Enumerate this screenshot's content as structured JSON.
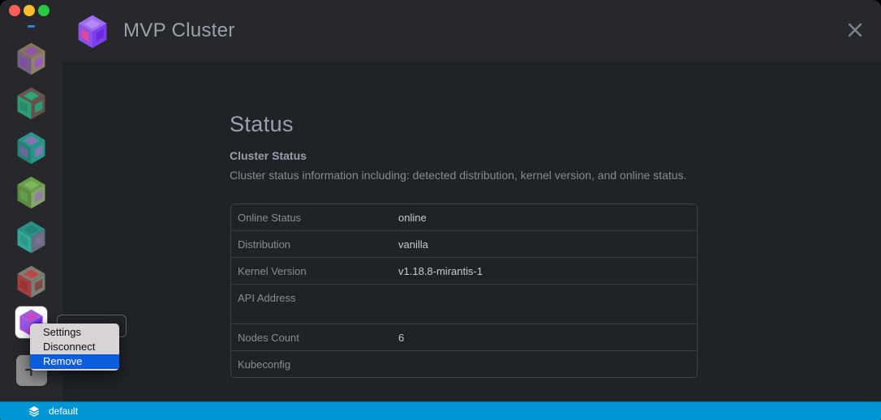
{
  "titlebar": {
    "title": "MVP Cluster",
    "logo_colors": [
      "#a06ef0",
      "#8a52e8",
      "#7c3ff0",
      "#b98af5",
      "#e0479e",
      "#6d28d9"
    ],
    "traffic_lights": [
      {
        "name": "close",
        "color": "#ff5f57"
      },
      {
        "name": "minimize",
        "color": "#febc2e"
      },
      {
        "name": "zoom",
        "color": "#28c840"
      }
    ]
  },
  "sidebar": {
    "workspace_indicator_color": "#3f7fd0",
    "clusters": [
      {
        "id": "cluster-1",
        "colors": [
          "#8f7c60",
          "#7a688a",
          "#9a8a6d",
          "#9b59b6",
          "#8d4fb0",
          "#a35fd0"
        ]
      },
      {
        "id": "cluster-2",
        "colors": [
          "#6f5b53",
          "#2fa57c",
          "#6a564e",
          "#29b581",
          "#24936c",
          "#2fa57c"
        ]
      },
      {
        "id": "cluster-3",
        "colors": [
          "#2aa190",
          "#25897c",
          "#2aa190",
          "#8e7cc3",
          "#7668a8",
          "#8e7cc3"
        ]
      },
      {
        "id": "cluster-4",
        "colors": [
          "#71a84f",
          "#5f9443",
          "#8fae71",
          "#82c45c",
          "#6aa84f",
          "#9b86a8"
        ]
      },
      {
        "id": "cluster-5",
        "colors": [
          "#2a9d8f",
          "#32b5a0",
          "#6a7586",
          "#25897c",
          "#2fa58f",
          "#8177a0"
        ]
      },
      {
        "id": "cluster-6",
        "colors": [
          "#8a8577",
          "#b04040",
          "#7d8a7d",
          "#c94b4b",
          "#a03636",
          "#8a4a4a"
        ]
      }
    ],
    "active_cluster": {
      "id": "mvp-cluster",
      "colors": [
        "#9d5fe0",
        "#b14fd8",
        "#7c3aed",
        "#d543c8",
        "#8b5cf6",
        "#6d28d9"
      ]
    },
    "add_button_label": "+"
  },
  "context_menu": {
    "highlight_color": "#0b5cde",
    "items": [
      {
        "label": "Settings",
        "highlighted": false
      },
      {
        "label": "Disconnect",
        "highlighted": false
      },
      {
        "label": "Remove",
        "highlighted": true
      }
    ]
  },
  "main": {
    "heading": "Status",
    "section_title": "Cluster Status",
    "section_description": "Cluster status information including: detected distribution, kernel version, and online status.",
    "table": {
      "rows": [
        {
          "label": "Online Status",
          "value": "online"
        },
        {
          "label": "Distribution",
          "value": "vanilla"
        },
        {
          "label": "Kernel Version",
          "value": "v1.18.8-mirantis-1"
        },
        {
          "label": "API Address",
          "value": ""
        },
        {
          "label": "Nodes Count",
          "value": "6"
        },
        {
          "label": "Kubeconfig",
          "value": ""
        }
      ]
    }
  },
  "statusbar": {
    "color": "#0095d5",
    "workspace": "default"
  }
}
